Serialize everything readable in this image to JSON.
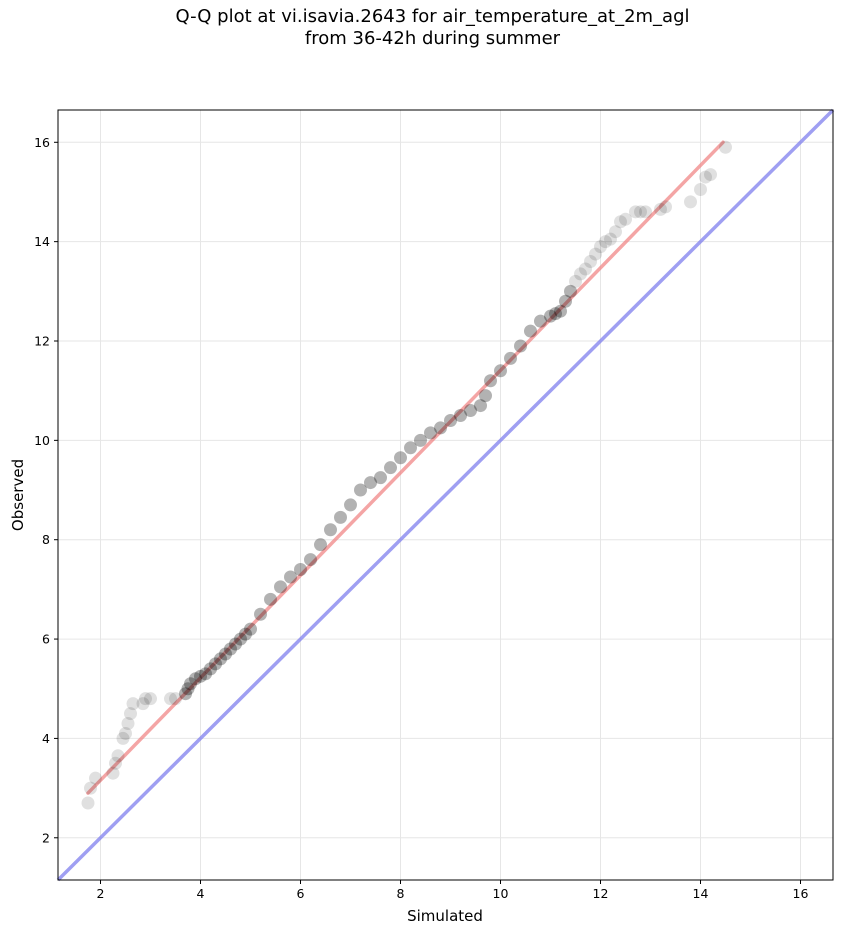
{
  "chart_data": {
    "type": "scatter",
    "title_lines": [
      "Q-Q plot at vi.isavia.2643 for air_temperature_at_2m_agl",
      "from 36-42h during summer"
    ],
    "xlabel": "Simulated",
    "ylabel": "Observed",
    "xlim": [
      1.15,
      16.65
    ],
    "ylim": [
      1.15,
      16.65
    ],
    "xticks": [
      2,
      4,
      6,
      8,
      10,
      12,
      14,
      16
    ],
    "yticks": [
      2,
      4,
      6,
      8,
      10,
      12,
      14,
      16
    ],
    "grid": true,
    "colors": {
      "points": "#000000",
      "fit_line": "#f08080",
      "identity_line": "#8080ee"
    },
    "series": [
      {
        "kind": "points",
        "x": [
          1.75,
          1.8,
          1.9,
          2.25,
          2.3,
          2.35,
          2.45,
          2.5,
          2.55,
          2.6,
          2.65,
          2.85,
          2.9,
          3.0,
          3.4,
          3.5,
          3.7,
          3.75,
          3.8,
          3.9,
          4.0,
          4.1,
          4.2,
          4.3,
          4.4,
          4.5,
          4.6,
          4.7,
          4.8,
          4.9,
          5.0,
          5.2,
          5.4,
          5.6,
          5.8,
          6.0,
          6.2,
          6.4,
          6.6,
          6.8,
          7.0,
          7.2,
          7.4,
          7.6,
          7.8,
          8.0,
          8.2,
          8.4,
          8.6,
          8.8,
          9.0,
          9.2,
          9.4,
          9.6,
          9.7,
          9.8,
          10.0,
          10.2,
          10.4,
          10.6,
          10.8,
          11.0,
          11.1,
          11.2,
          11.3,
          11.4,
          11.5,
          11.6,
          11.7,
          11.8,
          11.9,
          12.0,
          12.1,
          12.2,
          12.3,
          12.4,
          12.5,
          12.7,
          12.8,
          12.9,
          13.2,
          13.3,
          13.8,
          14.0,
          14.1,
          14.2,
          14.5
        ],
        "y": [
          2.7,
          3.0,
          3.2,
          3.3,
          3.5,
          3.65,
          4.0,
          4.1,
          4.3,
          4.5,
          4.7,
          4.7,
          4.8,
          4.8,
          4.8,
          4.8,
          4.9,
          5.0,
          5.1,
          5.2,
          5.25,
          5.3,
          5.4,
          5.5,
          5.6,
          5.7,
          5.8,
          5.9,
          6.0,
          6.1,
          6.2,
          6.5,
          6.8,
          7.05,
          7.25,
          7.4,
          7.6,
          7.9,
          8.2,
          8.45,
          8.7,
          9.0,
          9.15,
          9.25,
          9.45,
          9.65,
          9.85,
          10.0,
          10.15,
          10.25,
          10.4,
          10.5,
          10.6,
          10.7,
          10.9,
          11.2,
          11.4,
          11.65,
          11.9,
          12.2,
          12.4,
          12.5,
          12.55,
          12.6,
          12.8,
          13.0,
          13.2,
          13.35,
          13.45,
          13.6,
          13.75,
          13.9,
          14.0,
          14.05,
          14.2,
          14.4,
          14.45,
          14.6,
          14.6,
          14.6,
          14.65,
          14.7,
          14.8,
          15.05,
          15.3,
          15.35,
          15.9
        ]
      },
      {
        "kind": "fit_line",
        "x": [
          1.75,
          14.45
        ],
        "y": [
          2.9,
          16.0
        ]
      },
      {
        "kind": "identity_line",
        "x": [
          1.15,
          16.65
        ],
        "y": [
          1.15,
          16.65
        ]
      }
    ]
  }
}
